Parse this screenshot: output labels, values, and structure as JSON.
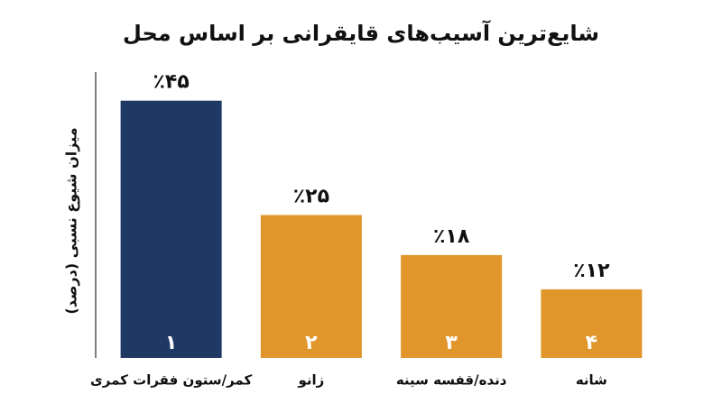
{
  "chart_data": {
    "type": "bar",
    "title": "شایع‌ترین آسیب‌های قایقرانی بر اساس محل",
    "y_label": "میزان شیوع نسبی (درصد)",
    "categories": [
      "کمر/ستون فقرات کمری",
      "زانو",
      "دنده/قفسه سینه",
      "شانه"
    ],
    "values": [
      45,
      25,
      18,
      12
    ],
    "value_labels": [
      "٪۴۵",
      "٪۲۵",
      "٪۱۸",
      "٪۱۲"
    ],
    "rank_labels": [
      "۱",
      "۲",
      "۳",
      "۴"
    ],
    "colors": [
      "#1f3864",
      "#e0962a",
      "#e0962a",
      "#e0962a"
    ],
    "ylim": [
      0,
      50
    ]
  }
}
